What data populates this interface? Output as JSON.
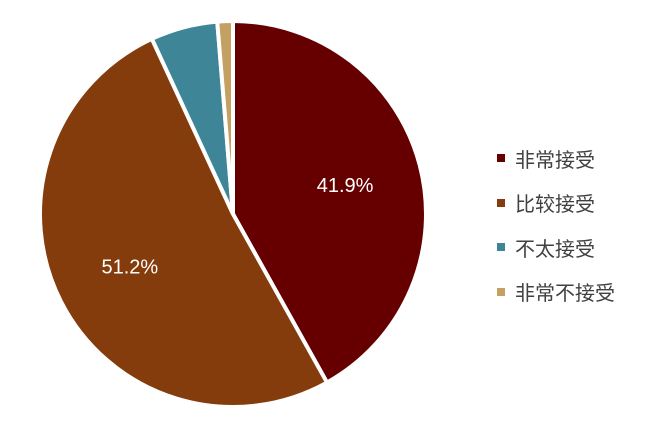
{
  "chart_data": {
    "type": "pie",
    "start_angle": "12 o'clock, clockwise",
    "slices": [
      {
        "label": "非常接受",
        "value": 41.9,
        "display": "41.9%",
        "color": "#660000"
      },
      {
        "label": "比较接受",
        "value": 51.2,
        "display": "51.2%",
        "color": "#843C0C"
      },
      {
        "label": "不太接受",
        "value": 5.6,
        "display": "",
        "color": "#3E8597"
      },
      {
        "label": "非常不接受",
        "value": 1.3,
        "display": "",
        "color": "#C5A063"
      }
    ],
    "legend_position": "right"
  }
}
